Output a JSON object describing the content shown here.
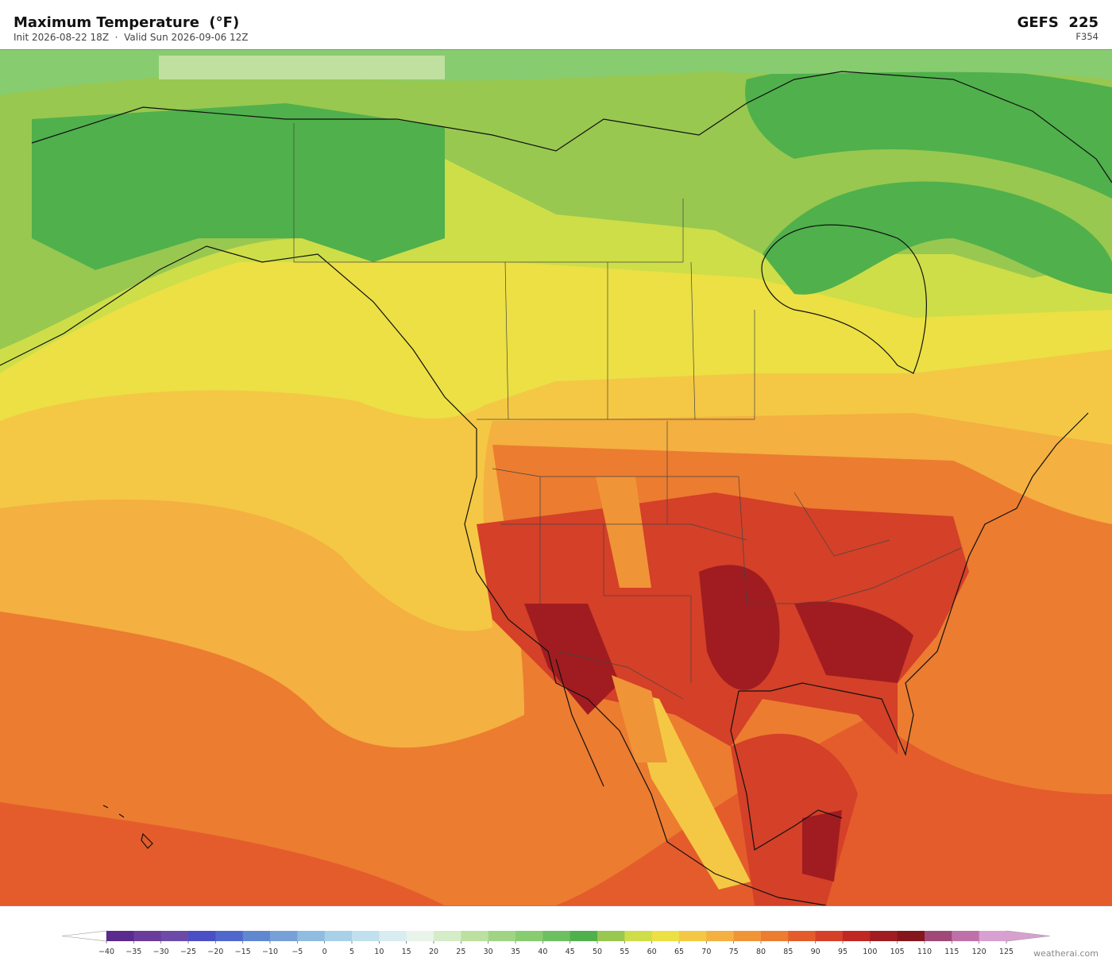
{
  "header": {
    "title": "Maximum Temperature  (°F)",
    "subtitle": "Init 2026-08-22 18Z  ·  Valid Sun 2026-09-06 12Z",
    "model": "GEFS  225",
    "forecast_hour": "F354"
  },
  "colorbar": {
    "ticks": [
      {
        "value": -40,
        "label": "−40"
      },
      {
        "value": -35,
        "label": "−35"
      },
      {
        "value": -30,
        "label": "−30"
      },
      {
        "value": -25,
        "label": "−25"
      },
      {
        "value": -20,
        "label": "−20"
      },
      {
        "value": -15,
        "label": "−15"
      },
      {
        "value": -10,
        "label": "−10"
      },
      {
        "value": -5,
        "label": "−5"
      },
      0,
      5,
      10,
      15,
      20,
      25,
      30,
      35,
      40,
      45,
      50,
      55,
      60,
      65,
      70,
      75,
      80,
      85,
      90,
      95,
      100,
      105,
      110,
      115,
      120,
      125
    ],
    "colors": [
      "#5a2a8e",
      "#6a3c9c",
      "#6e4aa8",
      "#4a4fc4",
      "#5068cc",
      "#6088d0",
      "#78a0d8",
      "#90bce0",
      "#a8d0e8",
      "#c0e0ee",
      "#d8ecf2",
      "#e8f4ea",
      "#d4ecc8",
      "#bce0a0",
      "#a0d484",
      "#88cc70",
      "#6cc060",
      "#50b04c",
      "#98c850",
      "#cede48",
      "#ece044",
      "#f4c844",
      "#f4b040",
      "#f09438",
      "#ec7c30",
      "#e45c2c",
      "#d44028",
      "#c02824",
      "#a01c20",
      "#84161c",
      "#a04878",
      "#c070a8",
      "#d8a0d0"
    ],
    "under_color": "#ffffff",
    "over_color": "#d8a0d0"
  },
  "watermark": "weatherai.com"
}
